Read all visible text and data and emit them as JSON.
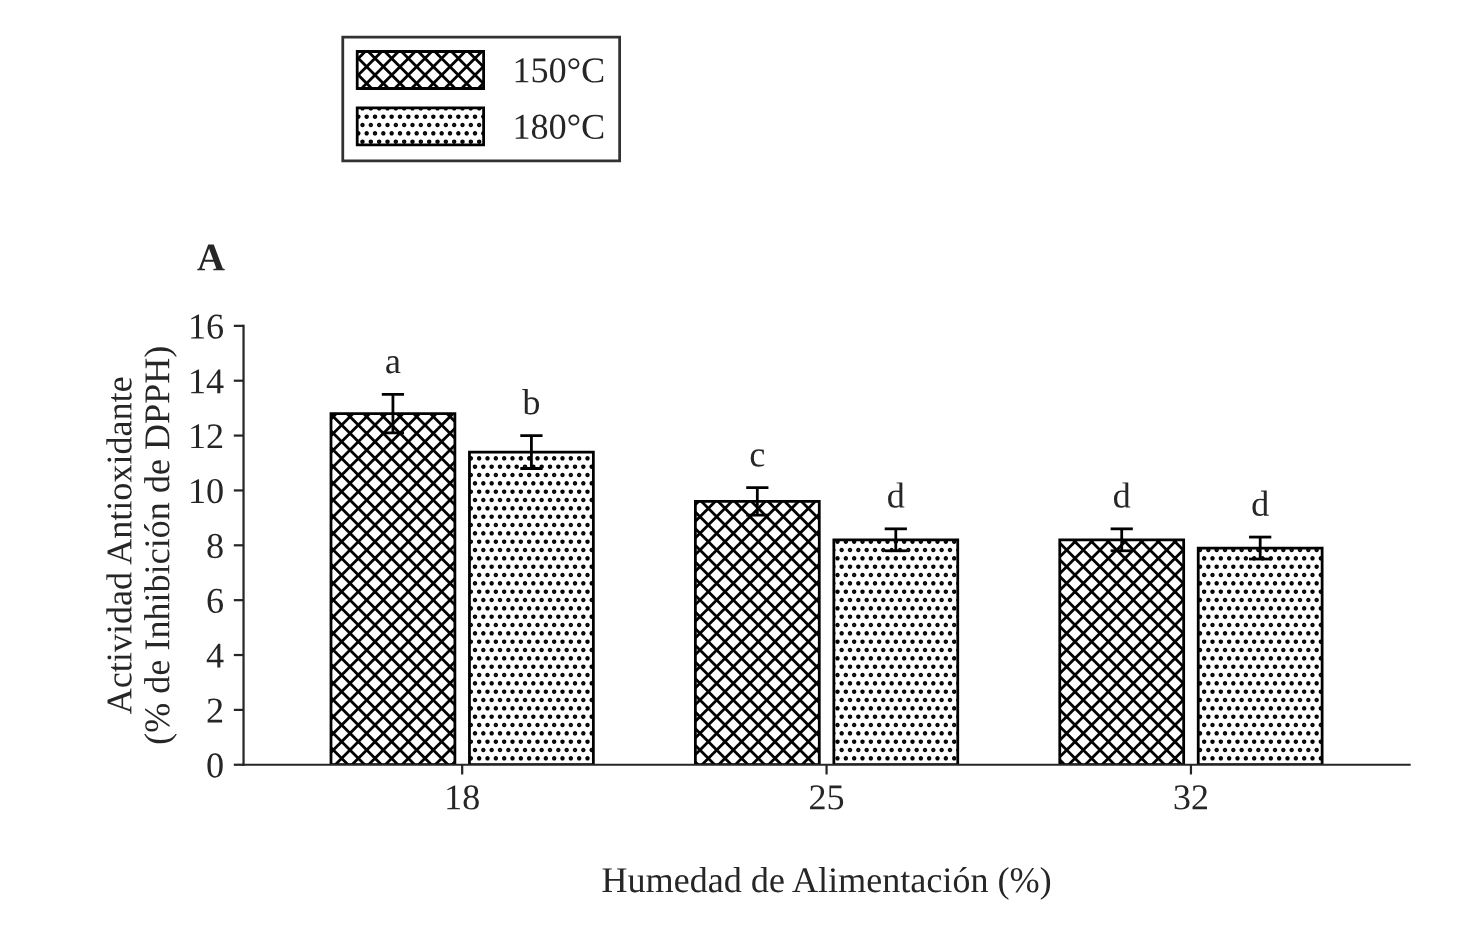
{
  "chart_data": {
    "type": "bar",
    "title": "A",
    "xlabel": "Humedad de Alimentación (%)",
    "ylabel": "Actividad Antioxidante\n(% de Inhibición de DPPH)",
    "categories": [
      "18",
      "25",
      "32"
    ],
    "series": [
      {
        "name": "150°C",
        "color": "#000000",
        "values": [
          12.8,
          9.6,
          8.2
        ],
        "errors": [
          0.7,
          0.5,
          0.4
        ]
      },
      {
        "name": "180°C",
        "color": "#000000",
        "values": [
          11.4,
          8.2,
          7.9
        ],
        "errors": [
          0.6,
          0.4,
          0.4
        ]
      }
    ],
    "ylim": [
      0,
      16
    ],
    "yticks": [
      0,
      2,
      4,
      6,
      8,
      10,
      12,
      14,
      16
    ],
    "grid": false,
    "legend": "top left",
    "annotations": [
      "a",
      "b",
      "c",
      "d",
      "d",
      "d"
    ]
  }
}
